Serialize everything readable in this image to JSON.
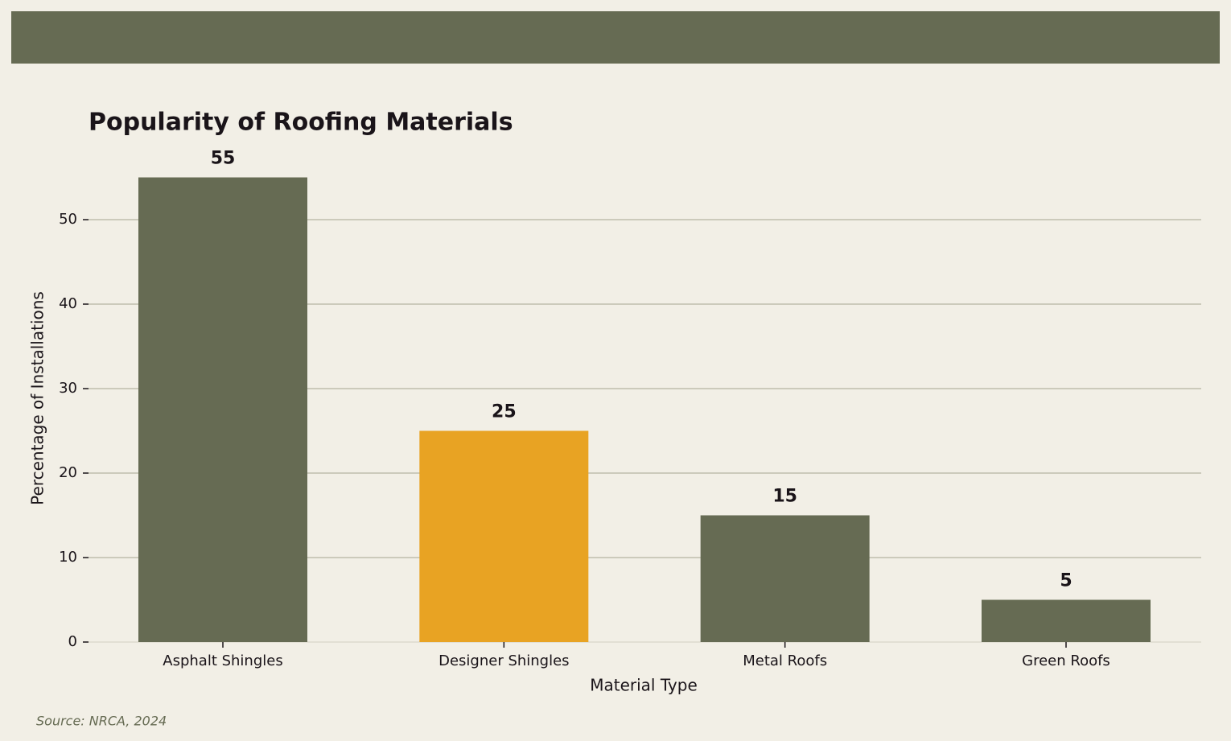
{
  "chart_data": {
    "type": "bar",
    "title": "Popularity of Roofing Materials",
    "categories": [
      "Asphalt Shingles",
      "Designer Shingles",
      "Metal Roofs",
      "Green Roofs"
    ],
    "values": [
      55,
      25,
      15,
      5
    ],
    "colors": [
      "#666b53",
      "#e8a323",
      "#666b53",
      "#666b53"
    ],
    "x_label": "Material Type",
    "y_label": "Percentage of Installations",
    "ylim": [
      0,
      57.75
    ],
    "yticks": [
      0,
      10,
      20,
      30,
      40,
      50
    ],
    "grid": true,
    "source": "Source: NRCA, 2024"
  }
}
